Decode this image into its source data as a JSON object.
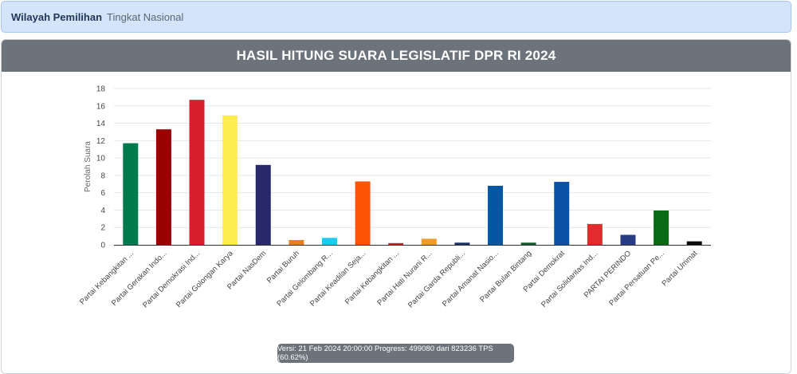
{
  "region": {
    "label": "Wilayah Pemilihan",
    "value": "Tingkat Nasional"
  },
  "panel": {
    "title": "HASIL HITUNG SUARA LEGISLATIF DPR RI 2024"
  },
  "footer": {
    "version_text": "Versi: 21 Feb 2024 20:00:00 Progress: 499080 dari 823236 TPS (60.62%)"
  },
  "chart_data": {
    "type": "bar",
    "ylabel": "Perolah Suara",
    "ylim": [
      0,
      18
    ],
    "yticks": [
      0,
      2,
      4,
      6,
      8,
      10,
      12,
      14,
      16,
      18
    ],
    "grid": true,
    "categories": [
      "Partai Kebangkitan ...",
      "Partai Gerakan Indo...",
      "Partai Demokrasi Ind...",
      "Partai Golongan Karya",
      "Partai NasDem",
      "Partai Buruh",
      "Partai Gelombang R...",
      "Partai Keadilan Seja...",
      "Partai Kebangkitan ...",
      "Partai Hati Nurani R...",
      "Partai Garda Republi...",
      "Partai Amanat Nasio...",
      "Partai Bulan Bintang",
      "Partai Demokrat",
      "Partai Solidaritas Ind...",
      "PARTAI PERINDO",
      "Partai Persatuan Pe...",
      "Partai Ummat"
    ],
    "values": [
      11.7,
      13.3,
      16.7,
      14.9,
      9.2,
      0.55,
      0.8,
      7.3,
      0.2,
      0.7,
      0.25,
      6.8,
      0.25,
      7.25,
      2.4,
      1.15,
      3.95,
      0.4
    ],
    "colors": [
      "#007a4d",
      "#990000",
      "#d7202d",
      "#fdee4e",
      "#27296a",
      "#e9801f",
      "#1ec9f4",
      "#fb5402",
      "#c6282d",
      "#f19a24",
      "#1e2f64",
      "#0356a1",
      "#145b2b",
      "#0a51a5",
      "#e12c2d",
      "#283c83",
      "#0a6b16",
      "#0b0b0b"
    ]
  }
}
